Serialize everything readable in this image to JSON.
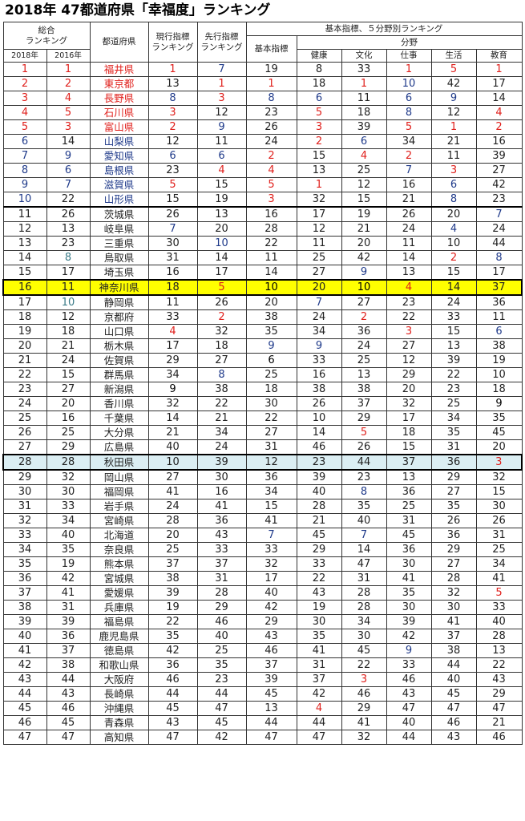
{
  "title": "2018年 47都道府県「幸福度」ランキング",
  "header": {
    "overall_line1": "総合",
    "overall_line2": "ランキング",
    "year_2018": "2018年",
    "year_2016": "2016年",
    "prefecture": "都道府県",
    "current_line1": "現行指標",
    "current_line2": "ランキング",
    "leading_line1": "先行指標",
    "leading_line2": "ランキング",
    "basic_group": "基本指標、５分野別ランキング",
    "basic": "基本指標",
    "field_group": "分野",
    "fields": [
      "健康",
      "文化",
      "仕事",
      "生活",
      "教育"
    ]
  },
  "colors": {
    "red": "#e0201c",
    "blue": "#1f3a8a",
    "highlight_yellow": "#ffff00",
    "highlight_blue": "#dbeef3"
  },
  "rows": [
    {
      "r2018": "1",
      "r2016": "1",
      "pref": "福井県",
      "cur": "1",
      "lead": "7",
      "basic": "19",
      "health": "8",
      "culture": "33",
      "work": "1",
      "life": "5",
      "edu": "1",
      "style": {
        "r2018": "r",
        "r2016": "r",
        "pref": "r",
        "cur": "r",
        "lead": "b",
        "work": "r",
        "life": "r",
        "edu": "r"
      }
    },
    {
      "r2018": "2",
      "r2016": "2",
      "pref": "東京都",
      "cur": "13",
      "lead": "1",
      "basic": "1",
      "health": "18",
      "culture": "1",
      "work": "10",
      "life": "42",
      "edu": "17",
      "style": {
        "r2018": "r",
        "r2016": "r",
        "pref": "r",
        "lead": "r",
        "basic": "r",
        "culture": "r",
        "work": "b"
      }
    },
    {
      "r2018": "3",
      "r2016": "4",
      "pref": "長野県",
      "cur": "8",
      "lead": "3",
      "basic": "8",
      "health": "6",
      "culture": "11",
      "work": "6",
      "life": "9",
      "edu": "14",
      "style": {
        "r2018": "r",
        "r2016": "r",
        "pref": "r",
        "cur": "b",
        "lead": "r",
        "basic": "b",
        "health": "b",
        "work": "b",
        "life": "b"
      }
    },
    {
      "r2018": "4",
      "r2016": "5",
      "pref": "石川県",
      "cur": "3",
      "lead": "12",
      "basic": "23",
      "health": "5",
      "culture": "18",
      "work": "8",
      "life": "12",
      "edu": "4",
      "style": {
        "r2018": "r",
        "r2016": "r",
        "pref": "r",
        "cur": "r",
        "health": "r",
        "work": "b",
        "edu": "r"
      }
    },
    {
      "r2018": "5",
      "r2016": "3",
      "pref": "富山県",
      "cur": "2",
      "lead": "9",
      "basic": "26",
      "health": "3",
      "culture": "39",
      "work": "5",
      "life": "1",
      "edu": "2",
      "style": {
        "r2018": "r",
        "r2016": "r",
        "pref": "r",
        "cur": "r",
        "lead": "b",
        "health": "r",
        "work": "r",
        "life": "r",
        "edu": "r"
      }
    },
    {
      "r2018": "6",
      "r2016": "14",
      "pref": "山梨県",
      "cur": "12",
      "lead": "11",
      "basic": "24",
      "health": "2",
      "culture": "6",
      "work": "34",
      "life": "21",
      "edu": "16",
      "style": {
        "r2018": "b",
        "pref": "b",
        "health": "r",
        "culture": "b"
      }
    },
    {
      "r2018": "7",
      "r2016": "9",
      "pref": "愛知県",
      "cur": "6",
      "lead": "6",
      "basic": "2",
      "health": "15",
      "culture": "4",
      "work": "2",
      "life": "11",
      "edu": "39",
      "style": {
        "r2018": "b",
        "r2016": "b",
        "pref": "b",
        "cur": "b",
        "lead": "b",
        "basic": "r",
        "culture": "r",
        "work": "r"
      }
    },
    {
      "r2018": "8",
      "r2016": "6",
      "pref": "島根県",
      "cur": "23",
      "lead": "4",
      "basic": "4",
      "health": "13",
      "culture": "25",
      "work": "7",
      "life": "3",
      "edu": "27",
      "style": {
        "r2018": "b",
        "r2016": "b",
        "pref": "b",
        "lead": "r",
        "basic": "r",
        "work": "b",
        "life": "r"
      }
    },
    {
      "r2018": "9",
      "r2016": "7",
      "pref": "滋賀県",
      "cur": "5",
      "lead": "15",
      "basic": "5",
      "health": "1",
      "culture": "12",
      "work": "16",
      "life": "6",
      "edu": "42",
      "style": {
        "r2018": "b",
        "r2016": "b",
        "pref": "b",
        "cur": "r",
        "basic": "r",
        "health": "r",
        "life": "b"
      }
    },
    {
      "r2018": "10",
      "r2016": "22",
      "pref": "山形県",
      "cur": "15",
      "lead": "19",
      "basic": "3",
      "health": "32",
      "culture": "15",
      "work": "21",
      "life": "8",
      "edu": "23",
      "style": {
        "r2018": "b",
        "pref": "b",
        "basic": "r",
        "life": "b"
      }
    },
    {
      "r2018": "11",
      "r2016": "26",
      "pref": "茨城県",
      "cur": "26",
      "lead": "13",
      "basic": "16",
      "health": "17",
      "culture": "19",
      "work": "26",
      "life": "20",
      "edu": "7",
      "style": {
        "edu": "b"
      },
      "sep": true
    },
    {
      "r2018": "12",
      "r2016": "13",
      "pref": "岐阜県",
      "cur": "7",
      "lead": "20",
      "basic": "28",
      "health": "12",
      "culture": "21",
      "work": "24",
      "life": "4",
      "edu": "24",
      "style": {
        "cur": "b",
        "life": "b"
      }
    },
    {
      "r2018": "13",
      "r2016": "23",
      "pref": "三重県",
      "cur": "30",
      "lead": "10",
      "basic": "22",
      "health": "11",
      "culture": "20",
      "work": "11",
      "life": "10",
      "edu": "44",
      "style": {
        "lead": "b"
      }
    },
    {
      "r2018": "14",
      "r2016": "8",
      "pref": "鳥取県",
      "cur": "31",
      "lead": "14",
      "basic": "11",
      "health": "25",
      "culture": "42",
      "work": "14",
      "life": "2",
      "edu": "8",
      "style": {
        "r2016": "g",
        "life": "r",
        "edu": "b"
      }
    },
    {
      "r2018": "15",
      "r2016": "17",
      "pref": "埼玉県",
      "cur": "16",
      "lead": "17",
      "basic": "14",
      "health": "27",
      "culture": "9",
      "work": "13",
      "life": "15",
      "edu": "17",
      "style": {
        "culture": "b"
      }
    },
    {
      "r2018": "16",
      "r2016": "11",
      "pref": "神奈川県",
      "cur": "18",
      "lead": "5",
      "basic": "10",
      "health": "20",
      "culture": "10",
      "work": "4",
      "life": "14",
      "edu": "37",
      "style": {
        "lead": "r",
        "basic": "k",
        "culture": "k",
        "work": "r"
      },
      "hl": "yellow"
    },
    {
      "r2018": "17",
      "r2016": "10",
      "pref": "静岡県",
      "cur": "11",
      "lead": "26",
      "basic": "20",
      "health": "7",
      "culture": "27",
      "work": "23",
      "life": "24",
      "edu": "36",
      "style": {
        "r2016": "g",
        "health": "b"
      }
    },
    {
      "r2018": "18",
      "r2016": "12",
      "pref": "京都府",
      "cur": "33",
      "lead": "2",
      "basic": "38",
      "health": "24",
      "culture": "2",
      "work": "22",
      "life": "33",
      "edu": "11",
      "style": {
        "lead": "r",
        "culture": "r"
      }
    },
    {
      "r2018": "19",
      "r2016": "18",
      "pref": "山口県",
      "cur": "4",
      "lead": "32",
      "basic": "35",
      "health": "34",
      "culture": "36",
      "work": "3",
      "life": "15",
      "edu": "6",
      "style": {
        "cur": "r",
        "work": "r",
        "edu": "b"
      }
    },
    {
      "r2018": "20",
      "r2016": "21",
      "pref": "栃木県",
      "cur": "17",
      "lead": "18",
      "basic": "9",
      "health": "9",
      "culture": "24",
      "work": "27",
      "life": "13",
      "edu": "38",
      "style": {
        "basic": "b",
        "health": "b"
      }
    },
    {
      "r2018": "21",
      "r2016": "24",
      "pref": "佐賀県",
      "cur": "29",
      "lead": "27",
      "basic": "6",
      "health": "33",
      "culture": "25",
      "work": "12",
      "life": "39",
      "edu": "19",
      "style": {
        "basic": "k"
      }
    },
    {
      "r2018": "22",
      "r2016": "15",
      "pref": "群馬県",
      "cur": "34",
      "lead": "8",
      "basic": "25",
      "health": "16",
      "culture": "13",
      "work": "29",
      "life": "22",
      "edu": "10",
      "style": {
        "lead": "b"
      }
    },
    {
      "r2018": "23",
      "r2016": "27",
      "pref": "新潟県",
      "cur": "9",
      "lead": "38",
      "basic": "18",
      "health": "38",
      "culture": "38",
      "work": "20",
      "life": "23",
      "edu": "18",
      "style": {
        "cur": "k"
      }
    },
    {
      "r2018": "24",
      "r2016": "20",
      "pref": "香川県",
      "cur": "32",
      "lead": "22",
      "basic": "30",
      "health": "26",
      "culture": "37",
      "work": "32",
      "life": "25",
      "edu": "9",
      "style": {
        "edu": "k"
      }
    },
    {
      "r2018": "25",
      "r2016": "16",
      "pref": "千葉県",
      "cur": "14",
      "lead": "21",
      "basic": "22",
      "health": "10",
      "culture": "29",
      "work": "17",
      "life": "34",
      "edu": "35",
      "style": {}
    },
    {
      "r2018": "26",
      "r2016": "25",
      "pref": "大分県",
      "cur": "21",
      "lead": "34",
      "basic": "27",
      "health": "14",
      "culture": "5",
      "work": "18",
      "life": "35",
      "edu": "45",
      "style": {
        "culture": "r"
      }
    },
    {
      "r2018": "27",
      "r2016": "29",
      "pref": "広島県",
      "cur": "40",
      "lead": "24",
      "basic": "31",
      "health": "46",
      "culture": "26",
      "work": "15",
      "life": "31",
      "edu": "20",
      "style": {}
    },
    {
      "r2018": "28",
      "r2016": "28",
      "pref": "秋田県",
      "cur": "10",
      "lead": "39",
      "basic": "12",
      "health": "23",
      "culture": "44",
      "work": "37",
      "life": "36",
      "edu": "3",
      "style": {
        "edu": "r"
      },
      "hl": "blue"
    },
    {
      "r2018": "29",
      "r2016": "32",
      "pref": "岡山県",
      "cur": "27",
      "lead": "30",
      "basic": "36",
      "health": "39",
      "culture": "23",
      "work": "13",
      "life": "29",
      "edu": "32",
      "style": {}
    },
    {
      "r2018": "30",
      "r2016": "30",
      "pref": "福岡県",
      "cur": "41",
      "lead": "16",
      "basic": "34",
      "health": "40",
      "culture": "8",
      "work": "36",
      "life": "27",
      "edu": "15",
      "style": {
        "culture": "b"
      }
    },
    {
      "r2018": "31",
      "r2016": "33",
      "pref": "岩手県",
      "cur": "24",
      "lead": "41",
      "basic": "15",
      "health": "28",
      "culture": "35",
      "work": "25",
      "life": "35",
      "edu": "30",
      "style": {}
    },
    {
      "r2018": "32",
      "r2016": "34",
      "pref": "宮崎県",
      "cur": "28",
      "lead": "36",
      "basic": "41",
      "health": "21",
      "culture": "40",
      "work": "31",
      "life": "26",
      "edu": "26",
      "style": {}
    },
    {
      "r2018": "33",
      "r2016": "40",
      "pref": "北海道",
      "cur": "20",
      "lead": "43",
      "basic": "7",
      "health": "45",
      "culture": "7",
      "work": "45",
      "life": "36",
      "edu": "31",
      "style": {
        "basic": "b",
        "culture": "b"
      }
    },
    {
      "r2018": "34",
      "r2016": "35",
      "pref": "奈良県",
      "cur": "25",
      "lead": "33",
      "basic": "33",
      "health": "29",
      "culture": "14",
      "work": "36",
      "life": "29",
      "edu": "25",
      "style": {}
    },
    {
      "r2018": "35",
      "r2016": "19",
      "pref": "熊本県",
      "cur": "37",
      "lead": "37",
      "basic": "32",
      "health": "33",
      "culture": "47",
      "work": "30",
      "life": "27",
      "edu": "34",
      "style": {}
    },
    {
      "r2018": "36",
      "r2016": "42",
      "pref": "宮城県",
      "cur": "38",
      "lead": "31",
      "basic": "17",
      "health": "22",
      "culture": "31",
      "work": "41",
      "life": "28",
      "edu": "41",
      "style": {}
    },
    {
      "r2018": "37",
      "r2016": "41",
      "pref": "愛媛県",
      "cur": "39",
      "lead": "28",
      "basic": "40",
      "health": "43",
      "culture": "28",
      "work": "35",
      "life": "32",
      "edu": "5",
      "style": {
        "edu": "r"
      }
    },
    {
      "r2018": "38",
      "r2016": "31",
      "pref": "兵庫県",
      "cur": "19",
      "lead": "29",
      "basic": "42",
      "health": "19",
      "culture": "28",
      "work": "30",
      "life": "30",
      "edu": "33",
      "style": {}
    },
    {
      "r2018": "39",
      "r2016": "39",
      "pref": "福島県",
      "cur": "22",
      "lead": "46",
      "basic": "29",
      "health": "30",
      "culture": "34",
      "work": "39",
      "life": "41",
      "edu": "40",
      "style": {}
    },
    {
      "r2018": "40",
      "r2016": "36",
      "pref": "鹿児島県",
      "cur": "35",
      "lead": "40",
      "basic": "43",
      "health": "35",
      "culture": "30",
      "work": "42",
      "life": "37",
      "edu": "28",
      "style": {}
    },
    {
      "r2018": "41",
      "r2016": "37",
      "pref": "徳島県",
      "cur": "42",
      "lead": "25",
      "basic": "46",
      "health": "41",
      "culture": "45",
      "work": "9",
      "life": "38",
      "edu": "13",
      "style": {
        "work": "b"
      }
    },
    {
      "r2018": "42",
      "r2016": "38",
      "pref": "和歌山県",
      "cur": "36",
      "lead": "35",
      "basic": "37",
      "health": "31",
      "culture": "22",
      "work": "33",
      "life": "44",
      "edu": "22",
      "style": {}
    },
    {
      "r2018": "43",
      "r2016": "44",
      "pref": "大阪府",
      "cur": "46",
      "lead": "23",
      "basic": "39",
      "health": "37",
      "culture": "3",
      "work": "46",
      "life": "40",
      "edu": "43",
      "style": {
        "culture": "r"
      }
    },
    {
      "r2018": "44",
      "r2016": "43",
      "pref": "長崎県",
      "cur": "44",
      "lead": "44",
      "basic": "45",
      "health": "42",
      "culture": "46",
      "work": "43",
      "life": "45",
      "edu": "29",
      "style": {}
    },
    {
      "r2018": "45",
      "r2016": "46",
      "pref": "沖縄県",
      "cur": "45",
      "lead": "47",
      "basic": "13",
      "health": "4",
      "culture": "29",
      "work": "47",
      "life": "47",
      "edu": "47",
      "style": {
        "health": "r"
      }
    },
    {
      "r2018": "46",
      "r2016": "45",
      "pref": "青森県",
      "cur": "43",
      "lead": "45",
      "basic": "44",
      "health": "44",
      "culture": "41",
      "work": "40",
      "life": "46",
      "edu": "21",
      "style": {}
    },
    {
      "r2018": "47",
      "r2016": "47",
      "pref": "高知県",
      "cur": "47",
      "lead": "42",
      "basic": "47",
      "health": "47",
      "culture": "32",
      "work": "44",
      "life": "43",
      "edu": "46",
      "style": {}
    }
  ]
}
